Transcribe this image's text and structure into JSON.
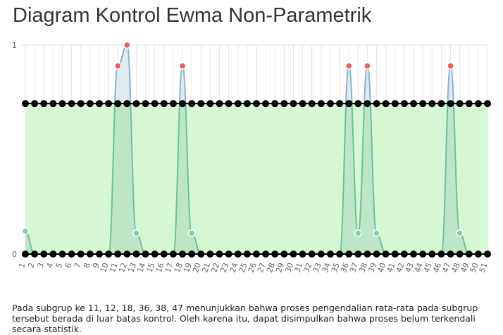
{
  "title": "Diagram Kontrol Ewma Non-Parametrik",
  "caption": "Pada subgrup ke 11, 12, 18, 36, 38, 47 menunjukkan bahwa proses pengendalian rata-rata pada subgrup tersebut berada di luar batas kontrol. Oleh karena itu, dapat disimpulkan bahwa proses belum terkendali secara statistik.",
  "colors": {
    "control_band": "#d5f8d3",
    "control_line": "#000000",
    "out_of_control_point": "#f05a5a",
    "in_control_point": "#7fcfb2",
    "series_line": "#88b3c4",
    "series_fill_inside": "#b8e3c4",
    "series_fill_outside": "#dde9ef",
    "grid": "#e6e6e6"
  },
  "chart_data": {
    "type": "line",
    "title": "Diagram Kontrol Ewma Non-Parametrik",
    "xlabel": "",
    "ylabel": "",
    "x": [
      1,
      2,
      3,
      4,
      5,
      6,
      7,
      8,
      9,
      10,
      11,
      12,
      13,
      14,
      15,
      16,
      17,
      18,
      19,
      20,
      21,
      22,
      23,
      24,
      25,
      26,
      27,
      28,
      29,
      30,
      31,
      32,
      33,
      34,
      35,
      36,
      37,
      38,
      39,
      40,
      41,
      42,
      43,
      44,
      45,
      46,
      47,
      48,
      49,
      50,
      51
    ],
    "ylim": [
      0,
      1
    ],
    "yticks": [
      "0",
      "1"
    ],
    "grid": true,
    "series": [
      {
        "values": [
          0.11,
          0,
          0,
          0,
          0,
          0,
          0,
          0,
          0,
          0,
          0.9,
          1,
          0.1,
          0,
          0,
          0,
          0,
          0.9,
          0.1,
          0,
          0,
          0,
          0,
          0,
          0,
          0,
          0,
          0,
          0,
          0,
          0,
          0,
          0,
          0,
          0,
          0.9,
          0.1,
          0.9,
          0.1,
          0,
          0,
          0,
          0,
          0,
          0,
          0,
          0.9,
          0.1,
          0,
          0,
          0
        ]
      },
      {
        "values": [
          0.72,
          0.72,
          0.72,
          0.72,
          0.72,
          0.72,
          0.72,
          0.72,
          0.72,
          0.72,
          0.72,
          0.72,
          0.72,
          0.72,
          0.72,
          0.72,
          0.72,
          0.72,
          0.72,
          0.72,
          0.72,
          0.72,
          0.72,
          0.72,
          0.72,
          0.72,
          0.72,
          0.72,
          0.72,
          0.72,
          0.72,
          0.72,
          0.72,
          0.72,
          0.72,
          0.72,
          0.72,
          0.72,
          0.72,
          0.72,
          0.72,
          0.72,
          0.72,
          0.72,
          0.72,
          0.72,
          0.72,
          0.72,
          0.72,
          0.72,
          0.72
        ]
      },
      {
        "values": [
          0,
          0,
          0,
          0,
          0,
          0,
          0,
          0,
          0,
          0,
          0,
          0,
          0,
          0,
          0,
          0,
          0,
          0,
          0,
          0,
          0,
          0,
          0,
          0,
          0,
          0,
          0,
          0,
          0,
          0,
          0,
          0,
          0,
          0,
          0,
          0,
          0,
          0,
          0,
          0,
          0,
          0,
          0,
          0,
          0,
          0,
          0,
          0,
          0,
          0,
          0
        ]
      }
    ],
    "out_of_control_subgroups": [
      11,
      12,
      18,
      36,
      38,
      47
    ],
    "highlighted_in_control_subgroups": [
      1,
      13,
      19,
      37,
      39,
      48
    ]
  }
}
